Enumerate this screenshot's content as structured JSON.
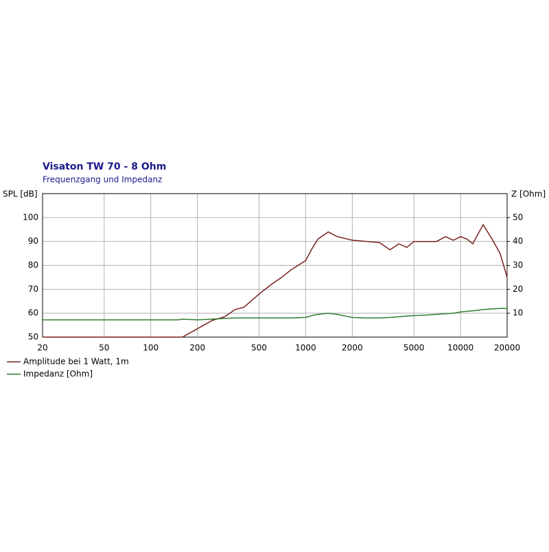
{
  "chart_data": {
    "type": "line",
    "title": "Visaton TW 70 - 8 Ohm",
    "subtitle": "Frequenzgang und Impedanz",
    "y_label": "SPL [dB]",
    "y2_label": "Z [Ohm]",
    "x": [
      20,
      50,
      100,
      150,
      160,
      200,
      250,
      300,
      350,
      400,
      500,
      600,
      700,
      800,
      1000,
      1100,
      1200,
      1400,
      1600,
      2000,
      2500,
      3000,
      3500,
      4000,
      4500,
      5000,
      6000,
      7000,
      8000,
      9000,
      10000,
      11000,
      12000,
      14000,
      16000,
      18000,
      20000
    ],
    "series": [
      {
        "name": "Amplitude bei 1 Watt, 1m",
        "color": "#7a1f1f",
        "values": [
          50,
          50,
          50,
          50,
          50,
          53.5,
          57,
          58.5,
          61.5,
          62.5,
          68,
          72,
          75,
          78,
          82,
          87,
          91,
          94,
          92,
          90.5,
          90,
          89.5,
          86.5,
          89,
          87.5,
          90,
          90,
          90,
          92,
          90.5,
          92,
          91,
          89,
          97,
          91,
          85,
          75
        ]
      },
      {
        "name": "Impedanz [Ohm]",
        "color": "#2e7d2e",
        "axis": "y2",
        "values": [
          7.2,
          7.2,
          7.2,
          7.2,
          7.5,
          7.2,
          7.5,
          7.8,
          8,
          8,
          8,
          8,
          8,
          8,
          8.2,
          9,
          9.5,
          10,
          9.5,
          8.2,
          8,
          8,
          8.2,
          8.5,
          8.8,
          9,
          9.2,
          9.5,
          9.8,
          10,
          10.5,
          10.8,
          11,
          11.5,
          11.8,
          12,
          12
        ]
      }
    ],
    "xlim": [
      20,
      20000
    ],
    "xticks": [
      20,
      50,
      100,
      200,
      500,
      1000,
      2000,
      5000,
      10000,
      20000
    ],
    "xlog": true,
    "ylim": [
      50,
      110
    ],
    "yticks": [
      50,
      60,
      70,
      80,
      90,
      100
    ],
    "y2lim": [
      0,
      60
    ],
    "y2ticks": [
      10,
      20,
      30,
      40,
      50
    ],
    "grid": true
  }
}
